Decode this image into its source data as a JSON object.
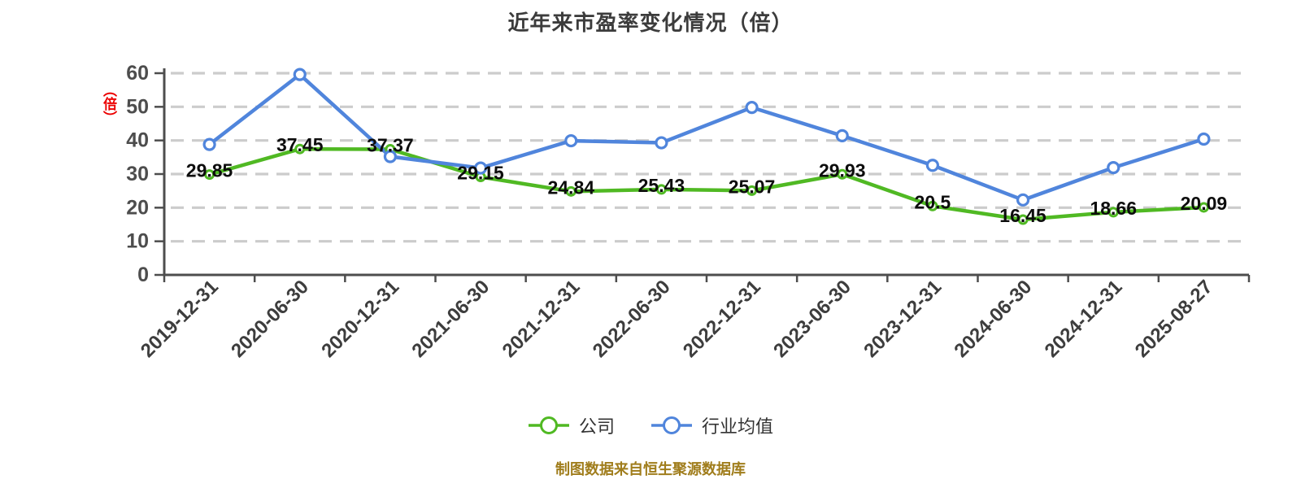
{
  "title": "近年来市盈率变化情况（倍）",
  "y_axis_unit": "（倍）",
  "footer_note": "制图数据来自恒生聚源数据库",
  "colors": {
    "company_line": "#50b923",
    "industry_line": "#5085dc",
    "gridline": "#cccccc",
    "axis": "#4d4d4d",
    "data_label": "#0d0d0d",
    "x_label": "#3d3d3d",
    "y_label": "#4d4d4d",
    "unit_label_red": "#ec0000",
    "footer_gold": "#a07d1c"
  },
  "legend": [
    {
      "label": "公司",
      "color": "#50b923"
    },
    {
      "label": "行业均值",
      "color": "#5085dc"
    }
  ],
  "chart_data": {
    "type": "line",
    "title": "近年来市盈率变化情况（倍）",
    "xlabel": "",
    "ylabel": "（倍）",
    "ylim": [
      0,
      60
    ],
    "y_ticks": [
      0,
      10,
      20,
      30,
      40,
      50,
      60
    ],
    "grid": "horizontal-dashed",
    "legend_position": "bottom",
    "categories": [
      "2019-12-31",
      "2020-06-30",
      "2020-12-31",
      "2021-06-30",
      "2021-12-31",
      "2022-06-30",
      "2022-12-31",
      "2023-06-30",
      "2023-12-31",
      "2024-06-30",
      "2024-12-31",
      "2025-08-27"
    ],
    "series": [
      {
        "name": "公司",
        "color": "#50b923",
        "show_value_labels": true,
        "values": [
          29.85,
          37.45,
          37.37,
          29.15,
          24.84,
          25.43,
          25.07,
          29.93,
          20.5,
          16.45,
          18.66,
          20.09
        ],
        "value_labels": [
          "29.85",
          "37.45",
          "37.37",
          "29.15",
          "24.84",
          "25.43",
          "25.07",
          "29.93",
          "20.5",
          "16.45",
          "18.66",
          "20.09"
        ]
      },
      {
        "name": "行业均值",
        "color": "#5085dc",
        "show_value_labels": false,
        "values_estimated": true,
        "values": [
          38.8,
          59.6,
          35.2,
          31.8,
          39.9,
          39.3,
          49.8,
          41.4,
          32.6,
          22.3,
          31.9,
          40.4
        ]
      }
    ]
  }
}
